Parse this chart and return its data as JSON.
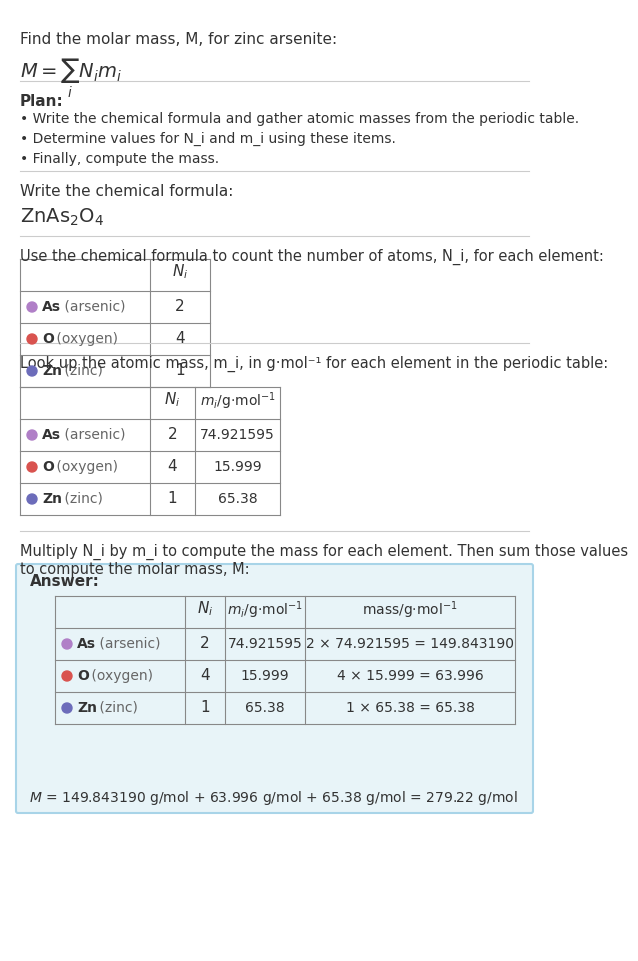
{
  "title": "Find the molar mass, M, for zinc arsenite:",
  "formula_eq": "M = ∑ N_i m_i",
  "formula_sub": "i",
  "plan_header": "Plan:",
  "plan_bullets": [
    "• Write the chemical formula and gather atomic masses from the periodic table.",
    "• Determine values for N_i and m_i using these items.",
    "• Finally, compute the mass."
  ],
  "chem_formula_label": "Write the chemical formula:",
  "chem_formula": "ZnAs₂O₄",
  "table1_label": "Use the chemical formula to count the number of atoms, N_i, for each element:",
  "table2_label": "Look up the atomic mass, m_i, in g·mol⁻¹ for each element in the periodic table:",
  "table3_label": "Multiply N_i by m_i to compute the mass for each element. Then sum those values\nto compute the molar mass, M:",
  "elements": [
    "As (arsenic)",
    "O (oxygen)",
    "Zn (zinc)"
  ],
  "element_symbols": [
    "As",
    "O",
    "Zn"
  ],
  "element_names": [
    "arsenic",
    "oxygen",
    "zinc"
  ],
  "element_colors": [
    "#b07fc7",
    "#d9534f",
    "#6c6cba"
  ],
  "Ni": [
    2,
    4,
    1
  ],
  "mi": [
    "74.921595",
    "15.999",
    "65.38"
  ],
  "mass_expr": [
    "2 × 74.921595 = 149.843190",
    "4 × 15.999 = 63.996",
    "1 × 65.38 = 65.38"
  ],
  "answer_box_color": "#e8f4f8",
  "answer_box_border": "#a8d4e8",
  "final_eq": "M = 149.843190 g/mol + 63.996 g/mol + 65.38 g/mol = 279.22 g/mol",
  "separator_color": "#cccccc",
  "bg_color": "#ffffff",
  "text_color": "#333333",
  "table_border_color": "#888888"
}
